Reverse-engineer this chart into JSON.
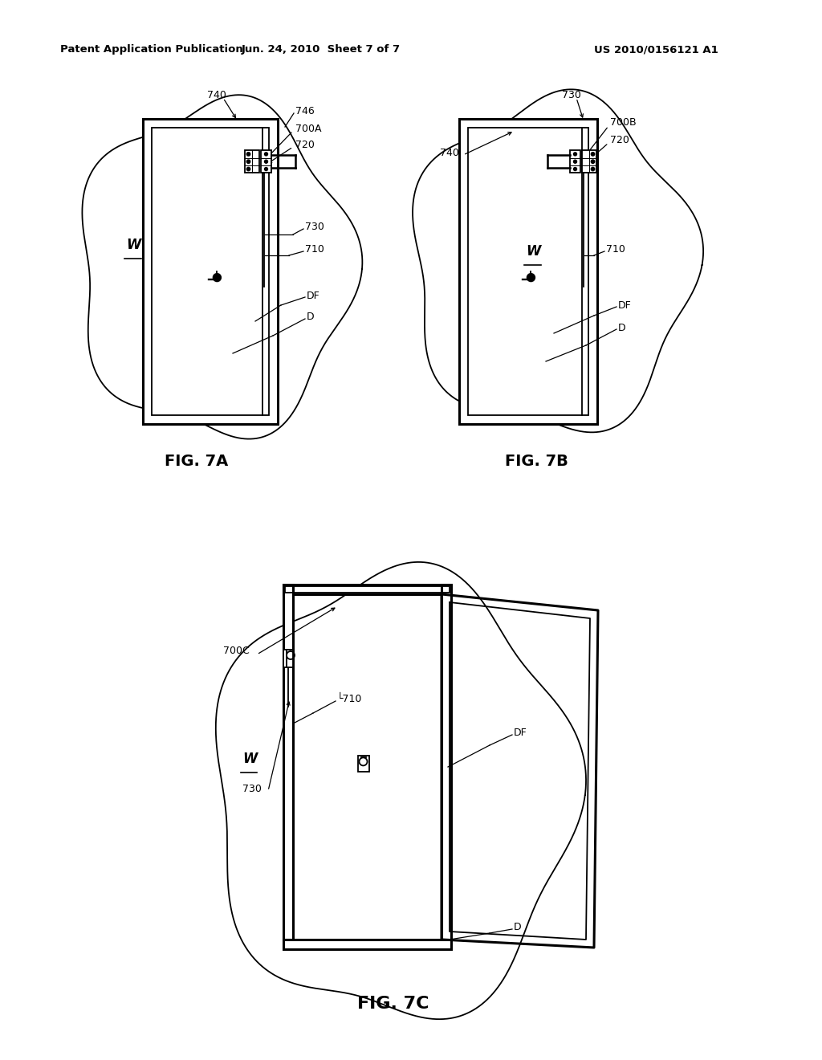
{
  "background_color": "#ffffff",
  "header_left": "Patent Application Publication",
  "header_center": "Jun. 24, 2010  Sheet 7 of 7",
  "header_right": "US 2010/0156121 A1",
  "fig7a_label": "FIG. 7A",
  "fig7b_label": "FIG. 7B",
  "fig7c_label": "FIG. 7C",
  "line_color": "#000000",
  "lw": 1.3,
  "tlw": 2.2
}
